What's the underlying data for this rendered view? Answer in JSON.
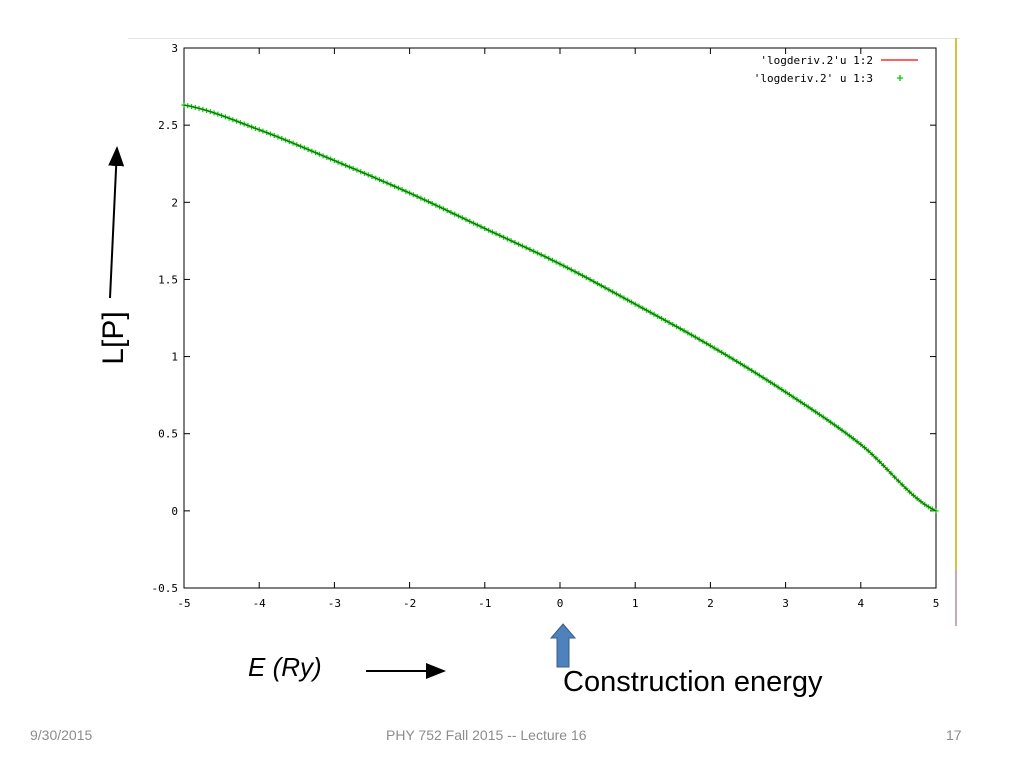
{
  "chart_data": {
    "type": "line",
    "x_ticks": [
      "-5",
      "-4",
      "-3",
      "-2",
      "-1",
      "0",
      "1",
      "2",
      "3",
      "4",
      "5"
    ],
    "y_ticks": [
      "3",
      "2.5",
      "2",
      "1.5",
      "1",
      "0.5",
      "0",
      "-0.5"
    ],
    "xlim": [
      -5,
      5
    ],
    "ylim": [
      -0.5,
      3
    ],
    "ylabel": "L[P]",
    "xlabel": "E (Ry)",
    "legend_position": "top-right",
    "series": [
      {
        "name": "'logderiv.2'u 1:2",
        "style": "line",
        "color": "#ff0000",
        "x": [
          -5,
          -4,
          -3,
          -2,
          -1,
          0,
          1,
          2,
          3,
          4,
          5
        ],
        "y": [
          2.63,
          2.47,
          2.27,
          2.06,
          1.83,
          1.6,
          1.34,
          1.07,
          0.77,
          0.43,
          0.0
        ]
      },
      {
        "name": "'logderiv.2' u 1:3",
        "style": "points",
        "marker": "+",
        "color": "#00cc00",
        "x": [
          -5,
          -4,
          -3,
          -2,
          -1,
          0,
          1,
          2,
          3,
          4,
          5
        ],
        "y": [
          2.63,
          2.47,
          2.27,
          2.06,
          1.83,
          1.6,
          1.34,
          1.07,
          0.77,
          0.43,
          0.0
        ]
      }
    ]
  },
  "annotation": {
    "construction_label": "Construction energy",
    "arrow_color": "#4f81bd"
  },
  "footer": {
    "date": "9/30/2015",
    "title": "PHY 752  Fall 2015 -- Lecture 16",
    "page": "17"
  }
}
